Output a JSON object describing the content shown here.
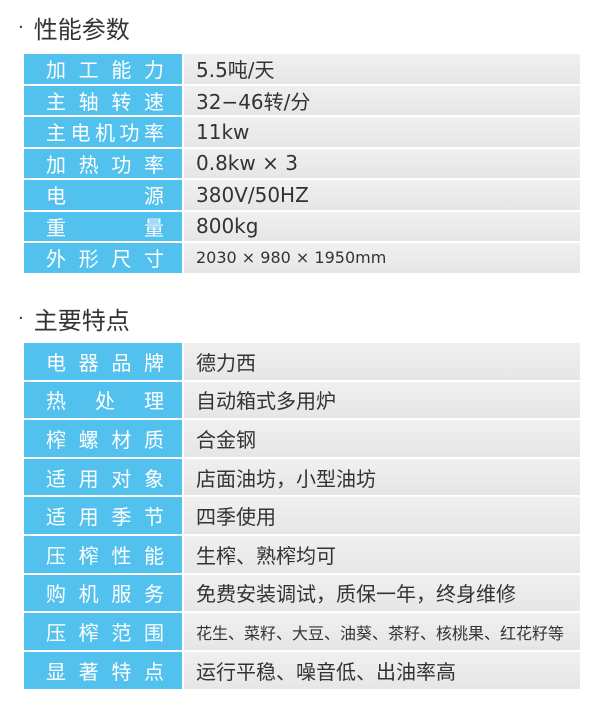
{
  "section1": {
    "title": "性能参数",
    "rows": [
      {
        "label": "加工能力",
        "value": "5.5吨/天"
      },
      {
        "label": "主轴转速",
        "value": "32−46转/分"
      },
      {
        "label": "主电机功率",
        "value": "11kw"
      },
      {
        "label": "加热功率",
        "value": "0.8kw × 3"
      },
      {
        "label": "电源",
        "value": "380V/50HZ"
      },
      {
        "label": "重量",
        "value": "800kg"
      },
      {
        "label": "外形尺寸",
        "value": "2030 × 980 × 1950mm"
      }
    ]
  },
  "section2": {
    "title": "主要特点",
    "rows": [
      {
        "label": "电器品牌",
        "value": "德力西"
      },
      {
        "label": "热处理",
        "value": "自动箱式多用炉"
      },
      {
        "label": "榨螺材质",
        "value": "合金钢"
      },
      {
        "label": "适用对象",
        "value": "店面油坊，小型油坊"
      },
      {
        "label": "适用季节",
        "value": "四季使用"
      },
      {
        "label": "压榨性能",
        "value": "生榨、熟榨均可"
      },
      {
        "label": "购机服务",
        "value": "免费安装调试，质保一年，终身维修"
      },
      {
        "label": "压榨范围",
        "value": "花生、菜籽、大豆、油葵、茶籽、核桃果、红花籽等"
      },
      {
        "label": "显著特点",
        "value": "运行平稳、噪音低、出油率高"
      }
    ]
  }
}
